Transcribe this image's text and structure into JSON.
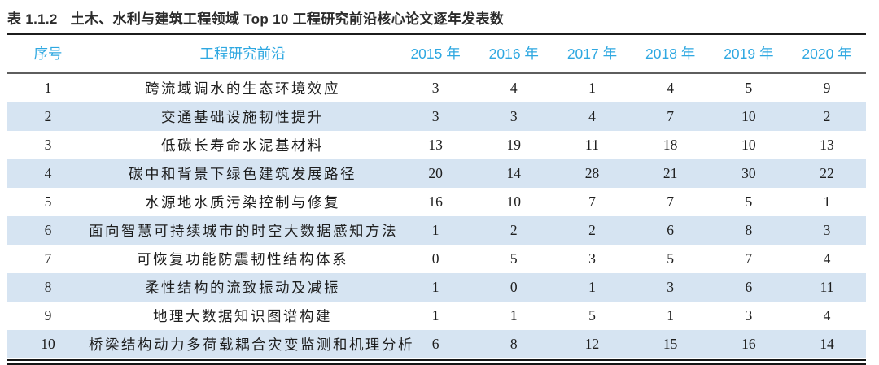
{
  "caption": {
    "label": "表 1.1.2",
    "text": "土木、水利与建筑工程领域 Top 10 工程研究前沿核心论文逐年发表数"
  },
  "table": {
    "columns": [
      "序号",
      "工程研究前沿",
      "2015 年",
      "2016 年",
      "2017 年",
      "2018 年",
      "2019 年",
      "2020 年"
    ],
    "rows": [
      {
        "rank": "1",
        "frontier": "跨流域调水的生态环境效应",
        "values": [
          "3",
          "4",
          "1",
          "4",
          "5",
          "9"
        ]
      },
      {
        "rank": "2",
        "frontier": "交通基础设施韧性提升",
        "values": [
          "3",
          "3",
          "4",
          "7",
          "10",
          "2"
        ]
      },
      {
        "rank": "3",
        "frontier": "低碳长寿命水泥基材料",
        "values": [
          "13",
          "19",
          "11",
          "18",
          "10",
          "13"
        ]
      },
      {
        "rank": "4",
        "frontier": "碳中和背景下绿色建筑发展路径",
        "values": [
          "20",
          "14",
          "28",
          "21",
          "30",
          "22"
        ]
      },
      {
        "rank": "5",
        "frontier": "水源地水质污染控制与修复",
        "values": [
          "16",
          "10",
          "7",
          "7",
          "5",
          "1"
        ]
      },
      {
        "rank": "6",
        "frontier": "面向智慧可持续城市的时空大数据感知方法",
        "values": [
          "1",
          "2",
          "2",
          "6",
          "8",
          "3"
        ]
      },
      {
        "rank": "7",
        "frontier": "可恢复功能防震韧性结构体系",
        "values": [
          "0",
          "5",
          "3",
          "5",
          "7",
          "4"
        ]
      },
      {
        "rank": "8",
        "frontier": "柔性结构的流致振动及减振",
        "values": [
          "1",
          "0",
          "1",
          "3",
          "6",
          "11"
        ]
      },
      {
        "rank": "9",
        "frontier": "地理大数据知识图谱构建",
        "values": [
          "1",
          "1",
          "5",
          "1",
          "3",
          "4"
        ]
      },
      {
        "rank": "10",
        "frontier": "桥梁结构动力多荷载耦合灾变监测和机理分析",
        "values": [
          "6",
          "8",
          "12",
          "15",
          "16",
          "14"
        ]
      }
    ]
  },
  "colors": {
    "header_text": "#2FA8E1",
    "row_highlight": "#D6E4F2",
    "rule_dark": "#1C1C1C",
    "header_rule": "#5E5E5E",
    "body_text": "#1E1E1E"
  }
}
